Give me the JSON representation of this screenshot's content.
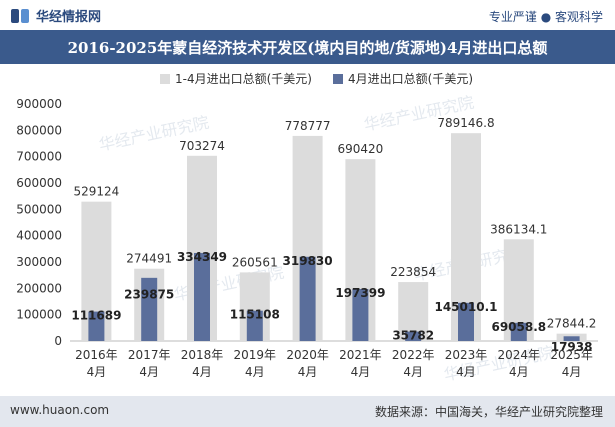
{
  "header": {
    "brand": "华经情报网",
    "tagline": "专业严谨 ● 客观科学"
  },
  "title": "2016-2025年蒙自经济技术开发区(境内目的地/货源地)4月进出口总额",
  "footer": {
    "url": "www.huaon.com",
    "source": "数据来源：中国海关，华经产业研究院整理"
  },
  "watermark": "华经产业研究院",
  "colors": {
    "title_bg": "#3a5a8c",
    "cumulative_bar": "#dcdcdc",
    "monthly_bar": "#5a6e9b",
    "footer_bg": "#e3e7ee"
  },
  "chart_data": {
    "type": "bar",
    "categories": [
      "2016年\n4月",
      "2017年\n4月",
      "2018年\n4月",
      "2019年\n4月",
      "2020年\n4月",
      "2021年\n4月",
      "2022年\n4月",
      "2023年\n4月",
      "2024年\n4月",
      "2025年\n4月"
    ],
    "series": [
      {
        "name": "1-4月进出口总额(千美元)",
        "values": [
          529124,
          274491,
          703274,
          260561,
          778777,
          690420,
          223854,
          789146.8,
          386134.1,
          27844.2
        ],
        "labels": [
          "529124",
          "274491",
          "703274",
          "260561",
          "778777",
          "690420",
          "223854",
          "789146.8",
          "386134.1",
          "27844.2"
        ]
      },
      {
        "name": "4月进出口总额(千美元)",
        "values": [
          111689,
          239875,
          334349,
          115108,
          319830,
          197399,
          35782,
          145010.1,
          69058.8,
          17938
        ],
        "labels": [
          "111689",
          "239875",
          "334349",
          "115108",
          "319830",
          "197399",
          "35782",
          "145010.1",
          "69058.8",
          "17938"
        ]
      }
    ],
    "ylim": [
      0,
      900000
    ],
    "yticks": [
      "0",
      "100000",
      "200000",
      "300000",
      "400000",
      "500000",
      "600000",
      "700000",
      "800000",
      "900000"
    ],
    "legend_position": "top",
    "grid": false
  }
}
